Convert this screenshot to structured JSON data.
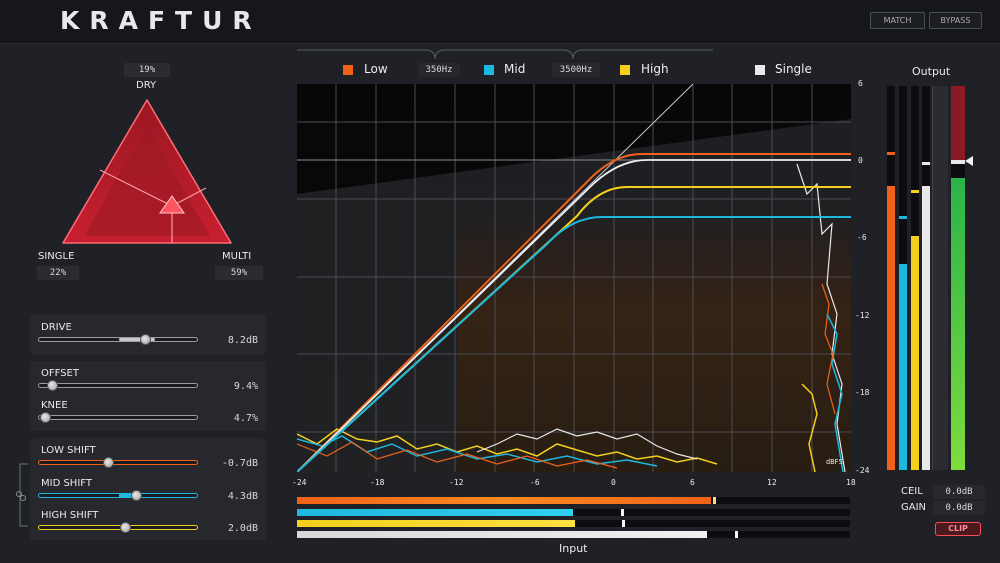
{
  "header": {
    "logo": "KRAFTUR",
    "match_label": "MATCH",
    "bypass_label": "BYPASS"
  },
  "blend": {
    "dry_value": "19%",
    "dry_label": "DRY",
    "single_label": "SINGLE",
    "single_value": "22%",
    "multi_label": "MULTI",
    "multi_value": "59%"
  },
  "controls": {
    "drive": {
      "label": "DRIVE",
      "value": "8.2dB",
      "level": 0.75
    },
    "offset": {
      "label": "OFFSET",
      "value": "9.4%",
      "level": 0.1
    },
    "knee": {
      "label": "KNEE",
      "value": "4.7%",
      "level": 0.05
    },
    "low_shift": {
      "label": "LOW SHIFT",
      "value": "-0.7dB",
      "level": 0.45
    },
    "mid_shift": {
      "label": "MID SHIFT",
      "value": "4.3dB",
      "level": 0.62
    },
    "high_shift": {
      "label": "HIGH SHIFT",
      "value": "2.0dB",
      "level": 0.55
    }
  },
  "bands": {
    "low_label": "Low",
    "crossover_1": "350Hz",
    "mid_label": "Mid",
    "crossover_2": "3500Hz",
    "high_label": "High",
    "single_label": "Single"
  },
  "graph": {
    "x_ticks": [
      "-24",
      "-18",
      "-12",
      "-6",
      "0",
      "6",
      "12",
      "18"
    ],
    "y_ticks": [
      "6",
      "0",
      "-6",
      "-12",
      "-18",
      "-24"
    ],
    "unit": "dBFS",
    "x_label": "Input"
  },
  "output": {
    "label": "Output",
    "ceil_label": "CEIL",
    "ceil_value": "0.0dB",
    "gain_label": "GAIN",
    "gain_value": "0.0dB",
    "clip_label": "CLIP"
  },
  "colors": {
    "low": "#f0621a",
    "mid": "#1eb7dd",
    "high": "#f4d01c",
    "single": "#e8e8e8",
    "accent": "#ff3b47"
  }
}
